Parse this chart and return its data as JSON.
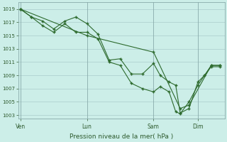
{
  "bg_color": "#cceee8",
  "grid_color": "#aacccc",
  "line_color": "#2d6a2d",
  "marker_color": "#2d6a2d",
  "xlabel": "Pression niveau de la mer( hPa )",
  "ylim": [
    1002.5,
    1020
  ],
  "yticks": [
    1003,
    1005,
    1007,
    1009,
    1011,
    1013,
    1015,
    1017,
    1019
  ],
  "xtick_labels": [
    "Ven",
    "Lun",
    "Sam",
    "Dim"
  ],
  "xtick_positions": [
    0,
    3,
    6,
    8
  ],
  "vline_positions": [
    0,
    3,
    6,
    8
  ],
  "line1": {
    "x": [
      0,
      0.5,
      1.0,
      1.5,
      2.0,
      2.5,
      3.0,
      3.5,
      4.0,
      4.5,
      5.0,
      5.5,
      6.0,
      6.3,
      6.7,
      7.0,
      7.2,
      7.6,
      8.0,
      8.3,
      8.6,
      9.0
    ],
    "y": [
      1019,
      1017.8,
      1017.2,
      1016.0,
      1017.2,
      1017.8,
      1016.8,
      1015.2,
      1011.3,
      1011.5,
      1009.2,
      1009.2,
      1010.8,
      1009.0,
      1008.0,
      1007.5,
      1003.3,
      1004.0,
      1008.0,
      1009.0,
      1010.5,
      1010.5
    ]
  },
  "line2": {
    "x": [
      0,
      0.5,
      1.0,
      1.5,
      2.0,
      2.5,
      3.0,
      3.5,
      4.0,
      4.5,
      5.0,
      5.5,
      6.0,
      6.3,
      6.7,
      7.0,
      7.2,
      7.6,
      8.0,
      8.3,
      8.6,
      9.0
    ],
    "y": [
      1019,
      1017.8,
      1016.5,
      1015.5,
      1016.8,
      1015.5,
      1015.5,
      1014.5,
      1011.0,
      1010.5,
      1007.8,
      1007.0,
      1006.5,
      1007.3,
      1006.5,
      1003.5,
      1003.2,
      1005.0,
      1007.5,
      1009.0,
      1010.3,
      1010.3
    ]
  },
  "line3": {
    "x": [
      0,
      3,
      6,
      7.2,
      7.6,
      8.6,
      9.0
    ],
    "y": [
      1019,
      1015.0,
      1012.5,
      1004.0,
      1004.5,
      1010.5,
      1010.5
    ]
  },
  "xmax": 9.2
}
